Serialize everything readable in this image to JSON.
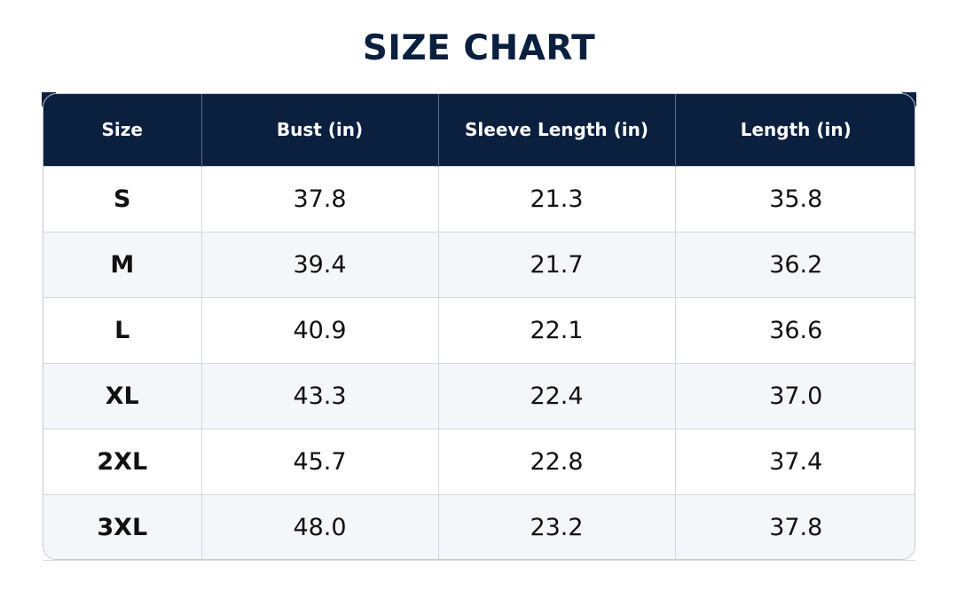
{
  "title": "SIZE CHART",
  "colors": {
    "title": "#0b1f3f",
    "header_bg": "#0b1f3f",
    "header_text": "#ffffff",
    "row_alt_bg": "#f5f6f9",
    "border": "#d4d7df"
  },
  "table": {
    "headers": [
      "Size",
      "Bust (in)",
      "Sleeve Length (in)",
      "Length (in)"
    ],
    "rows": [
      [
        "S",
        "37.8",
        "21.3",
        "35.8"
      ],
      [
        "M",
        "39.4",
        "21.7",
        "36.2"
      ],
      [
        "L",
        "40.9",
        "22.1",
        "36.6"
      ],
      [
        "XL",
        "43.3",
        "22.4",
        "37.0"
      ],
      [
        "2XL",
        "45.7",
        "22.8",
        "37.4"
      ],
      [
        "3XL",
        "48.0",
        "23.2",
        "37.8"
      ]
    ]
  },
  "chart_data": {
    "type": "table",
    "title": "SIZE CHART",
    "columns": [
      "Size",
      "Bust (in)",
      "Sleeve Length (in)",
      "Length (in)"
    ],
    "rows": [
      [
        "S",
        37.8,
        21.3,
        35.8
      ],
      [
        "M",
        39.4,
        21.7,
        36.2
      ],
      [
        "L",
        40.9,
        22.1,
        36.6
      ],
      [
        "XL",
        43.3,
        22.4,
        37.0
      ],
      [
        "2XL",
        45.7,
        22.8,
        37.4
      ],
      [
        "3XL",
        48.0,
        23.2,
        37.8
      ]
    ]
  }
}
